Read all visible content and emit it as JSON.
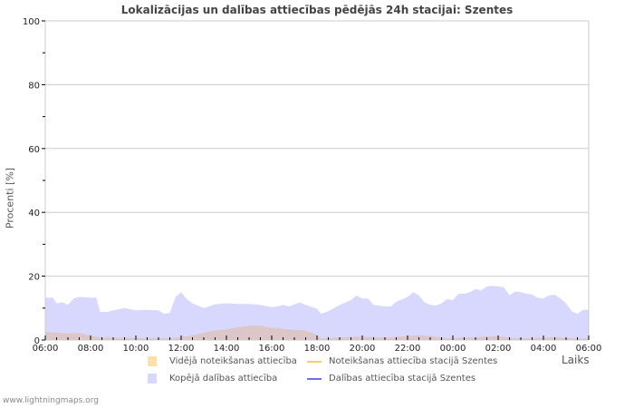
{
  "title": "Lokalizācijas un dalības attiecības pēdējās 24h stacijai: Szentes",
  "y_axis_label": "Procenti   [%]",
  "x_axis_label": "Laiks",
  "footer": "www.lightningmaps.org",
  "legend": [
    {
      "label": "Vidējā noteikšanas attiecība",
      "type": "area",
      "color": "#ffe0a8"
    },
    {
      "label": "Noteikšanas attiecība stacijā Szentes",
      "type": "line",
      "color": "#ffcc66"
    },
    {
      "label": "Kopējā dalības attiecība",
      "type": "area",
      "color": "#d8d8ff"
    },
    {
      "label": "Dalības attiecība stacijā Szentes",
      "type": "line",
      "color": "#7070e0"
    }
  ],
  "colors": {
    "grid": "#cccccc",
    "frame": "#cccccc",
    "participation_area": "#d8d8ff",
    "detection_area_overlap": "#dcc6c8"
  },
  "chart_data": {
    "type": "area",
    "title": "Lokalizācijas un dalības attiecības pēdējās 24h stacijai: Szentes",
    "xlabel": "Laiks",
    "ylabel": "Procenti [%]",
    "ylim": [
      0,
      100
    ],
    "yticks": [
      0,
      20,
      40,
      60,
      80,
      100
    ],
    "xticks": [
      "06:00",
      "08:00",
      "10:00",
      "12:00",
      "14:00",
      "16:00",
      "18:00",
      "20:00",
      "22:00",
      "00:00",
      "02:00",
      "04:00",
      "06:00"
    ],
    "grid": true,
    "legend_position": "bottom",
    "x_hours": [
      0,
      0.33,
      0.5,
      0.75,
      1,
      1.25,
      1.5,
      2,
      2.25,
      2.42,
      2.75,
      3,
      3.5,
      4,
      4.5,
      5,
      5.25,
      5.5,
      5.75,
      6,
      6.25,
      6.5,
      7,
      7.5,
      8,
      8.5,
      9,
      9.5,
      10,
      10.25,
      10.5,
      10.75,
      11,
      11.25,
      11.5,
      12,
      12.17,
      12.5,
      13,
      13.5,
      13.75,
      14,
      14.25,
      14.5,
      15,
      15.25,
      15.5,
      16,
      16.25,
      16.5,
      16.75,
      17,
      17.25,
      17.5,
      17.75,
      18,
      18.25,
      18.5,
      18.75,
      19,
      19.25,
      19.5,
      19.75,
      20,
      20.25,
      20.5,
      20.75,
      21,
      21.25,
      21.5,
      21.75,
      22,
      22.25,
      22.5,
      22.75,
      23,
      23.25,
      23.5,
      23.75,
      24
    ],
    "series": [
      {
        "name": "Kopējā dalības attiecība",
        "values": [
          13.3,
          13.3,
          11.5,
          11.8,
          11.0,
          13.0,
          13.5,
          13.3,
          13.3,
          8.8,
          8.8,
          9.3,
          10.0,
          9.3,
          9.5,
          9.3,
          8.2,
          8.5,
          13.5,
          15.0,
          12.8,
          11.5,
          10.0,
          11.2,
          11.5,
          11.3,
          11.3,
          11.0,
          10.3,
          10.5,
          11.0,
          10.5,
          11.2,
          11.8,
          11.0,
          9.8,
          8.2,
          9.0,
          11.0,
          12.5,
          14.0,
          13.0,
          13.0,
          11.0,
          10.5,
          10.5,
          12.0,
          13.5,
          15.0,
          14.0,
          11.8,
          11.0,
          10.8,
          11.5,
          12.8,
          12.5,
          14.5,
          14.5,
          15.0,
          16.0,
          15.5,
          16.8,
          17.0,
          16.8,
          16.5,
          14.0,
          15.2,
          15.0,
          14.5,
          14.3,
          13.2,
          13.0,
          14.0,
          14.2,
          13.0,
          11.5,
          9.0,
          8.2,
          9.5,
          9.5
        ]
      },
      {
        "name": "Vidējā noteikšanas attiecība",
        "values": [
          2.5,
          2.4,
          2.3,
          2.2,
          2.0,
          2.1,
          2.2,
          1.3,
          1.0,
          0.8,
          0.8,
          0.7,
          0.7,
          0.6,
          0.6,
          0.5,
          0.5,
          0.5,
          0.7,
          1.0,
          1.2,
          1.5,
          2.2,
          3.0,
          3.3,
          4.0,
          4.5,
          4.5,
          3.8,
          3.8,
          3.5,
          3.3,
          3.2,
          3.1,
          3.0,
          1.5,
          0.5,
          0.6,
          0.8,
          0.9,
          1.0,
          1.0,
          1.0,
          0.9,
          0.8,
          0.8,
          1.0,
          1.2,
          1.4,
          1.5,
          1.4,
          1.3,
          1.0,
          0.8,
          0.6,
          0.6,
          0.7,
          0.8,
          0.8,
          0.8,
          1.0,
          1.1,
          1.2,
          1.2,
          0.9,
          0.7,
          0.6,
          0.5,
          0.6,
          0.6,
          0.7,
          0.7,
          0.8,
          0.9,
          0.8,
          0.6,
          0.5,
          0.4,
          0.5,
          0.5
        ]
      },
      {
        "name": "Noteikšanas attiecība stacijā Szentes",
        "values": []
      },
      {
        "name": "Dalības attiecība stacijā Szentes",
        "values": []
      }
    ]
  }
}
